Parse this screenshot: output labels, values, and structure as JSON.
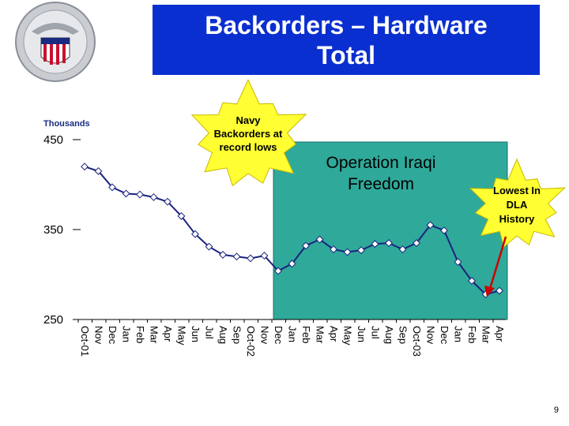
{
  "title": {
    "line1": "Backorders – Hardware",
    "line2": "Total"
  },
  "page_number": "9",
  "colors": {
    "title_bg": "#0a2fd0",
    "series_line": "#1a237e",
    "shaded_region": "#2fa99a",
    "starburst": "#ffff33",
    "arrow": "#cc0000"
  },
  "chart_data": {
    "type": "line",
    "title": "",
    "xlabel": "",
    "ylabel": "Thousands",
    "ylim": [
      250,
      450
    ],
    "yticks": [
      250,
      350,
      450
    ],
    "grid": false,
    "categories": [
      "Oct-01",
      "Nov",
      "Dec",
      "Jan",
      "Feb",
      "Mar",
      "Apr",
      "May",
      "Jun",
      "Jul",
      "Aug",
      "Sep",
      "Oct-02",
      "Nov",
      "Dec",
      "Jan",
      "Feb",
      "Mar",
      "Apr",
      "May",
      "Jun",
      "Jul",
      "Aug",
      "Sep",
      "Oct-03",
      "Nov",
      "Dec",
      "Jan",
      "Feb",
      "Mar",
      "Apr"
    ],
    "series": [
      {
        "name": "",
        "values": [
          420,
          415,
          397,
          390,
          389,
          386,
          381,
          365,
          345,
          331,
          322,
          320,
          318,
          321,
          304,
          312,
          332,
          339,
          328,
          325,
          327,
          334,
          335,
          328,
          335,
          355,
          349,
          314,
          293,
          278,
          282
        ]
      }
    ],
    "shaded_region": {
      "label_line1": "Operation Iraqi",
      "label_line2": "Freedom",
      "from": "Dec",
      "to": "Apr"
    },
    "annotations": [
      {
        "id": "navy",
        "lines": [
          "Navy",
          "Backorders at",
          "record lows"
        ]
      },
      {
        "id": "lowest",
        "lines": [
          "Lowest In",
          "DLA",
          "History"
        ]
      }
    ]
  }
}
